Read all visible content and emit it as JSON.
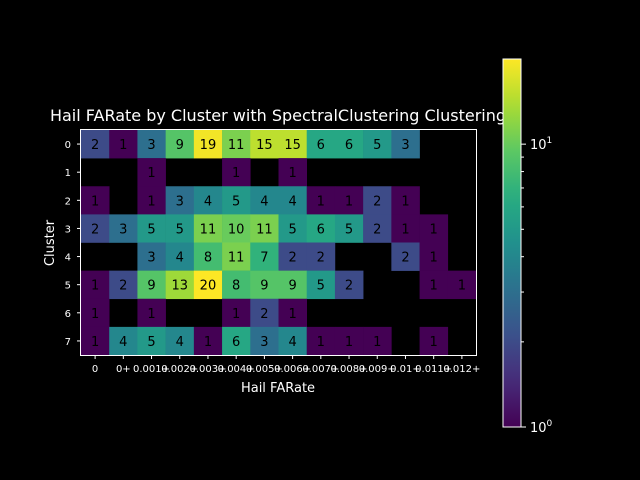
{
  "chart_data": {
    "type": "heatmap",
    "title": "Hail FARate by Cluster with SpectralClustering Clustering",
    "xlabel": "Hail FARate",
    "ylabel": "Cluster",
    "x_tick_labels": [
      "0",
      "0+",
      "0.001+",
      "0.002+",
      "0.003+",
      "0.004+",
      "0.005+",
      "0.006+",
      "0.007+",
      "0.008+",
      "0.009+",
      "0.01+",
      "0.011+",
      "0.012+"
    ],
    "y_tick_labels": [
      "0",
      "1",
      "2",
      "3",
      "4",
      "5",
      "6",
      "7"
    ],
    "values": [
      [
        2,
        1,
        3,
        9,
        19,
        11,
        15,
        15,
        6,
        6,
        5,
        3,
        null,
        null
      ],
      [
        null,
        null,
        1,
        null,
        null,
        1,
        null,
        1,
        null,
        null,
        null,
        null,
        null,
        null
      ],
      [
        1,
        null,
        1,
        3,
        4,
        5,
        4,
        4,
        1,
        1,
        2,
        1,
        null,
        null
      ],
      [
        2,
        3,
        5,
        5,
        11,
        10,
        11,
        5,
        6,
        5,
        2,
        1,
        1,
        null
      ],
      [
        null,
        null,
        3,
        4,
        8,
        11,
        7,
        2,
        2,
        null,
        null,
        2,
        1,
        null
      ],
      [
        1,
        2,
        9,
        13,
        20,
        8,
        9,
        9,
        5,
        2,
        null,
        null,
        1,
        1
      ],
      [
        1,
        null,
        1,
        null,
        null,
        1,
        2,
        1,
        null,
        null,
        null,
        null,
        null,
        null
      ],
      [
        1,
        4,
        5,
        4,
        1,
        6,
        3,
        4,
        1,
        1,
        1,
        null,
        1,
        null
      ]
    ],
    "colorscale": "viridis",
    "color_scale_type": "log",
    "color_range": [
      1,
      20
    ],
    "colorbar_tick_labels": [
      "10^0",
      "10^1"
    ],
    "colorbar_tick_values": [
      1,
      10
    ],
    "missing_color": "#000000",
    "background": "#000000",
    "foreground": "#ffffff"
  }
}
